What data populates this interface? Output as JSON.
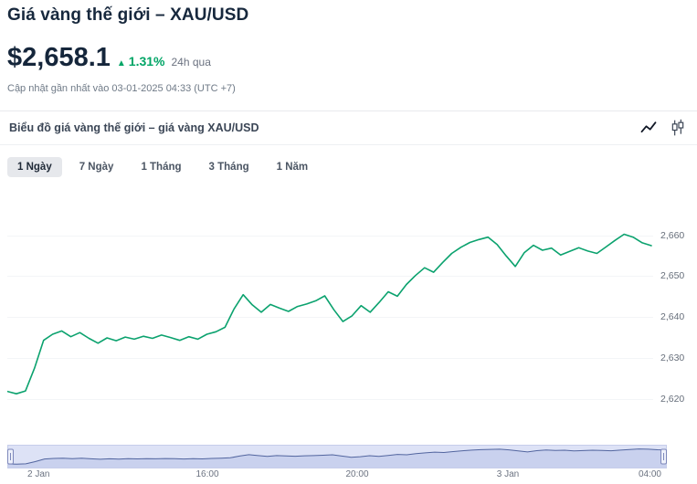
{
  "header": {
    "title": "Giá vàng thế giới – XAU/USD",
    "price": "$2,658.1",
    "change_arrow": "▲",
    "change_percent": "1.31%",
    "change_period": "24h qua",
    "updated_text": "Cập nhật gần nhất vào 03-01-2025 04:33 (UTC +7)"
  },
  "chart_header": {
    "title": "Biểu đồ giá vàng thế giới – giá vàng XAU/USD",
    "icons": [
      "line-chart-icon",
      "candlestick-chart-icon"
    ]
  },
  "range_tabs": {
    "items": [
      {
        "label": "1 Ngày",
        "active": true
      },
      {
        "label": "7 Ngày",
        "active": false
      },
      {
        "label": "1 Tháng",
        "active": false
      },
      {
        "label": "3 Tháng",
        "active": false
      },
      {
        "label": "1 Năm",
        "active": false
      }
    ]
  },
  "colors": {
    "accent_green": "#00a566",
    "line_green": "#0ba26e",
    "text_dark": "#15263b",
    "text_gray": "#6b7280",
    "navigator_fill": "#dde2f6",
    "navigator_area": "#c9d1ee",
    "navigator_line": "#52659f",
    "navigator_border": "#c6cdea"
  },
  "chart_data": {
    "type": "line",
    "title": "Biểu đồ giá vàng thế giới – giá vàng XAU/USD",
    "series_name": "XAU/USD",
    "x_labels": [
      "2 Jan",
      "16:00",
      "20:00",
      "3 Jan",
      "04:00"
    ],
    "ytick_labels": [
      "2,660",
      "2,650",
      "2,640",
      "2,630",
      "2,620"
    ],
    "yticks": [
      2660,
      2650,
      2640,
      2630,
      2620
    ],
    "ylim": [
      2617,
      2664
    ],
    "grid": "faint-horizontal",
    "legend": "none",
    "values": [
      2621.8,
      2621.2,
      2621.9,
      2627.5,
      2634.3,
      2635.8,
      2636.6,
      2635.2,
      2636.2,
      2634.8,
      2633.6,
      2634.9,
      2634.2,
      2635.1,
      2634.6,
      2635.3,
      2634.8,
      2635.6,
      2635.0,
      2634.3,
      2635.2,
      2634.6,
      2635.8,
      2636.4,
      2637.5,
      2642.0,
      2645.5,
      2643.0,
      2641.2,
      2643.1,
      2642.2,
      2641.4,
      2642.6,
      2643.2,
      2644.0,
      2645.2,
      2641.8,
      2638.9,
      2640.3,
      2642.8,
      2641.2,
      2643.6,
      2646.2,
      2645.1,
      2648.0,
      2650.2,
      2652.1,
      2651.0,
      2653.4,
      2655.6,
      2657.1,
      2658.3,
      2659.0,
      2659.6,
      2657.8,
      2655.0,
      2652.4,
      2655.8,
      2657.6,
      2656.4,
      2656.9,
      2655.2,
      2656.1,
      2657.0,
      2656.2,
      2655.6,
      2657.2,
      2658.8,
      2660.3,
      2659.6,
      2658.2,
      2657.5
    ]
  }
}
